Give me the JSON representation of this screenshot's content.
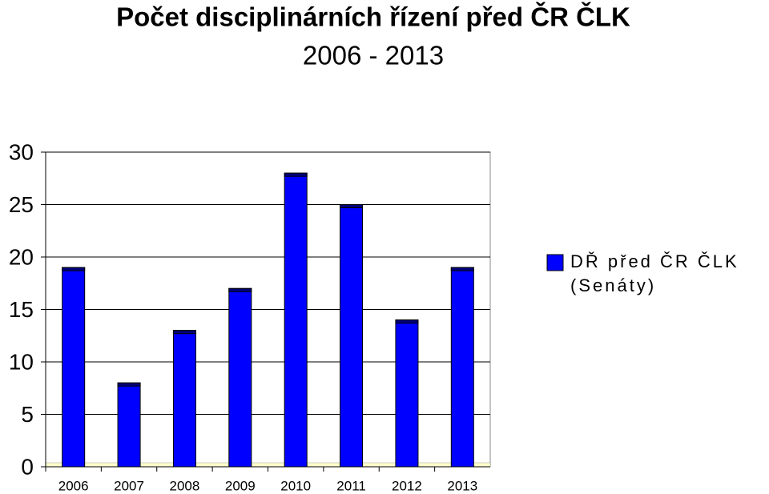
{
  "chart_data": {
    "type": "bar",
    "title": "Počet disciplinárních řízení před ČR ČLK",
    "subtitle": "2006 - 2013",
    "categories": [
      "2006",
      "2007",
      "2008",
      "2009",
      "2010",
      "2011",
      "2012",
      "2013"
    ],
    "series": [
      {
        "name": "DŘ před ČR ČLK (Senáty)",
        "color": "#0000ff",
        "values": [
          19,
          8,
          13,
          17,
          28,
          25,
          14,
          19
        ]
      }
    ],
    "ylim": [
      0,
      30
    ],
    "yticks": [
      0,
      5,
      10,
      15,
      20,
      25,
      30
    ],
    "grid": true,
    "legend": "right"
  }
}
